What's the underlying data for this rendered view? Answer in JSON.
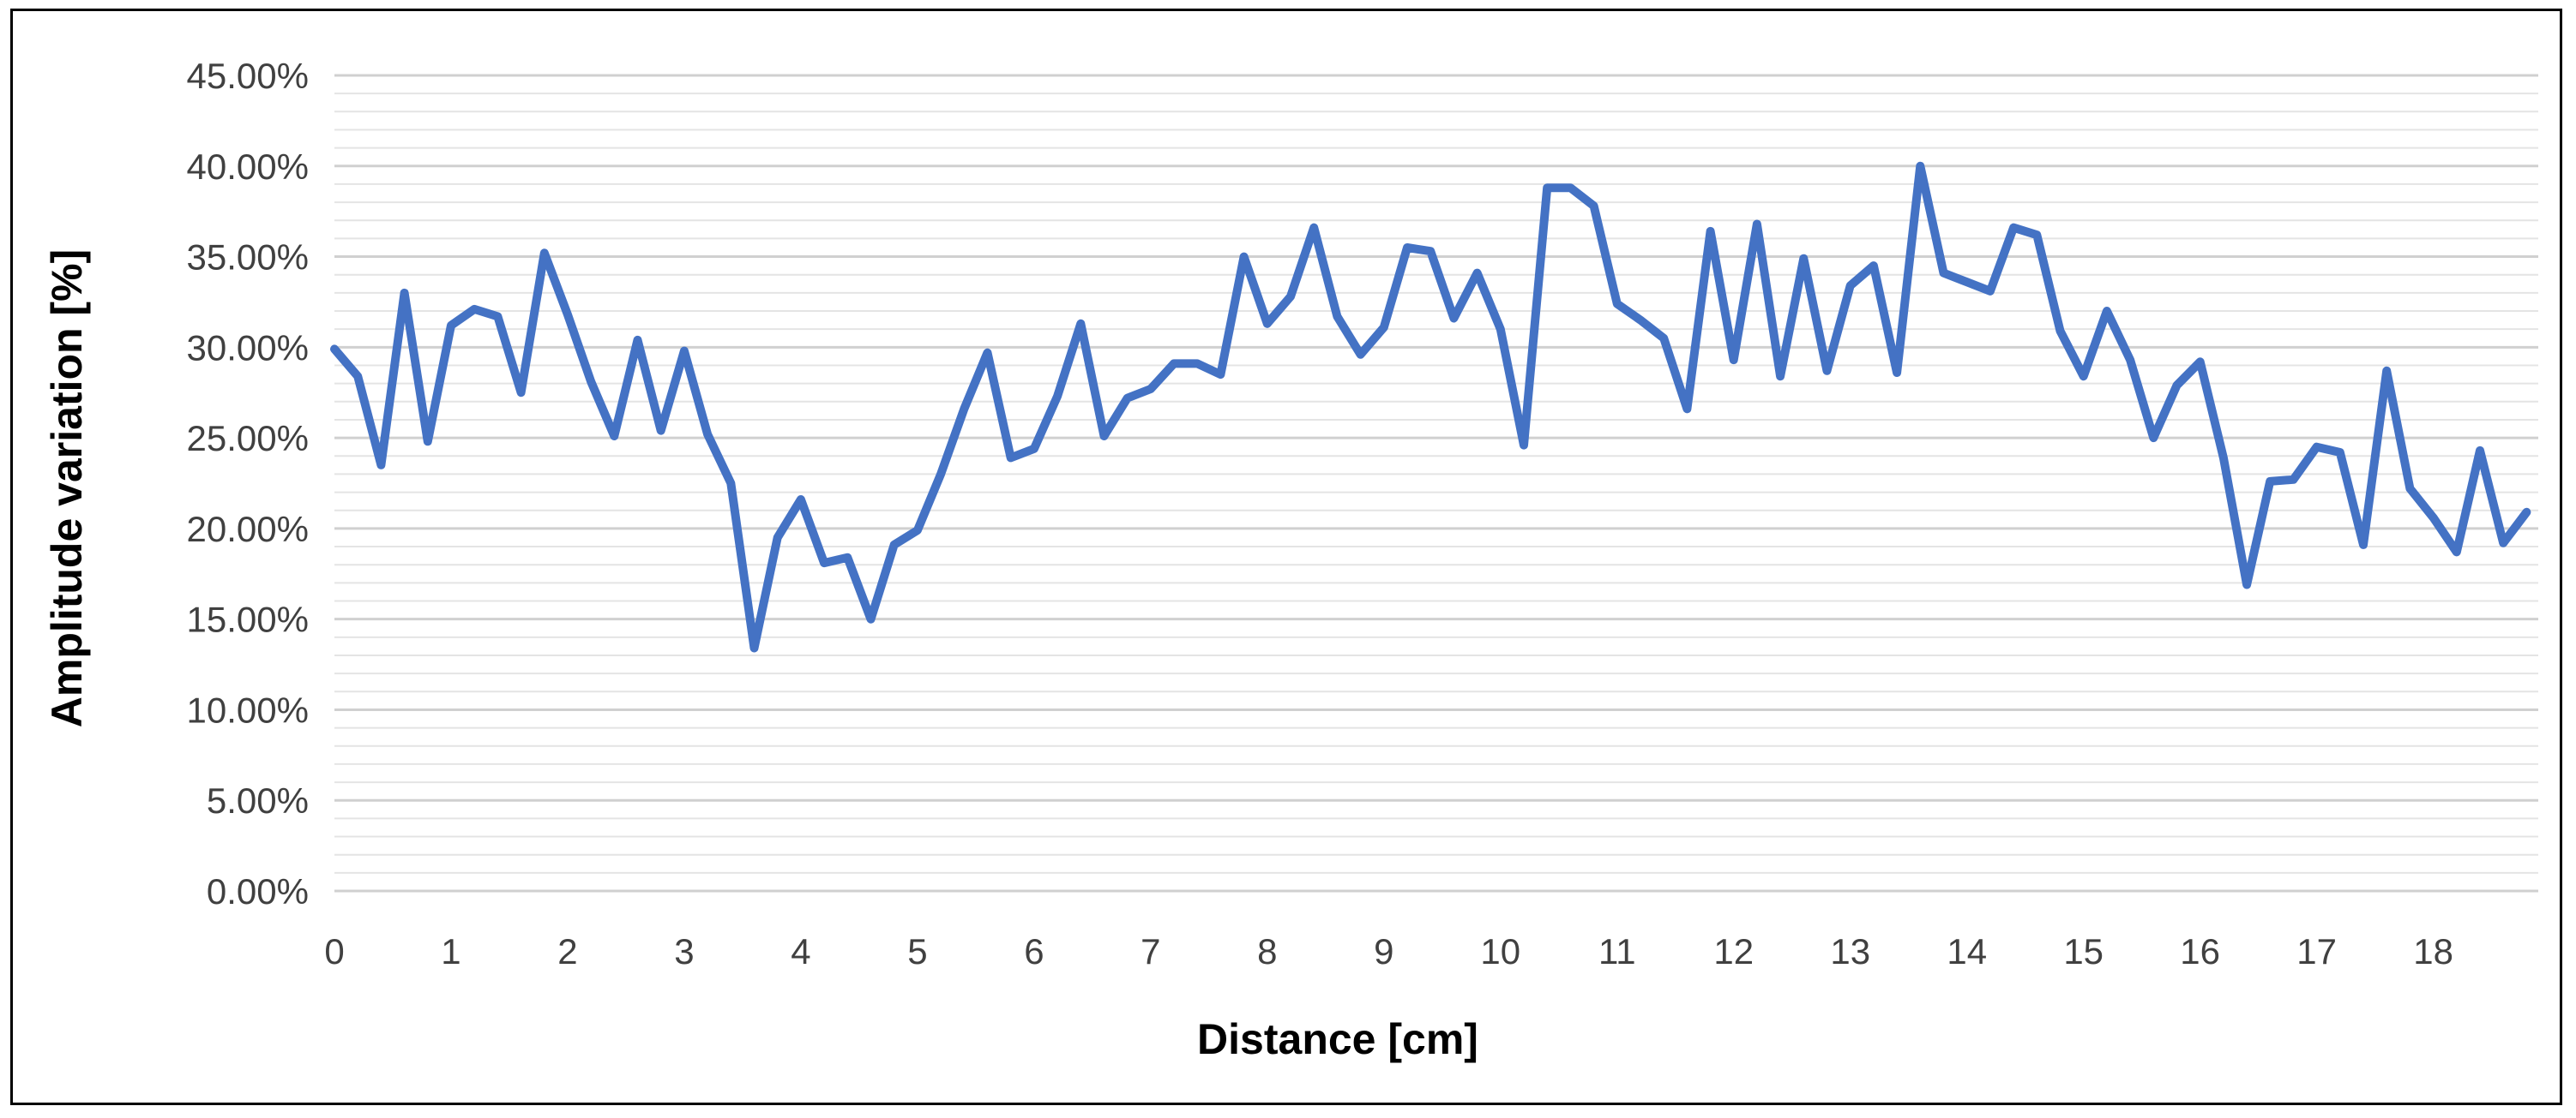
{
  "chart_data": {
    "type": "line",
    "title": "",
    "xlabel": "Distance [cm]",
    "ylabel": "Amplitude variation [%]",
    "xlim": [
      0,
      18.9
    ],
    "ylim": [
      0,
      0.45
    ],
    "x_ticks": [
      0,
      1,
      2,
      3,
      4,
      5,
      6,
      7,
      8,
      9,
      10,
      11,
      12,
      13,
      14,
      15,
      16,
      17,
      18
    ],
    "y_ticks": [
      0,
      0.05,
      0.1,
      0.15,
      0.2,
      0.25,
      0.3,
      0.35,
      0.4,
      0.45
    ],
    "y_tick_labels": [
      "0.00%",
      "5.00%",
      "10.00%",
      "15.00%",
      "20.00%",
      "25.00%",
      "30.00%",
      "35.00%",
      "40.00%",
      "45.00%"
    ],
    "grid": true,
    "minor_grid": true,
    "legend": "none",
    "line_color": "#4472C4",
    "series": [
      {
        "x": [
          0.0,
          0.2,
          0.4,
          0.6,
          0.8,
          1.0,
          1.2,
          1.4,
          1.6,
          1.8,
          2.0,
          2.2,
          2.4,
          2.6,
          2.8,
          3.0,
          3.2,
          3.4,
          3.6,
          3.8,
          4.0,
          4.2,
          4.4,
          4.6,
          4.8,
          5.0,
          5.2,
          5.4,
          5.6,
          5.8,
          6.0,
          6.2,
          6.4,
          6.6,
          6.8,
          7.0,
          7.2,
          7.4,
          7.6,
          7.8,
          8.0,
          8.2,
          8.4,
          8.6,
          8.8,
          9.0,
          9.2,
          9.4,
          9.6,
          9.8,
          10.0,
          10.2,
          10.4,
          10.6,
          10.8,
          11.0,
          11.2,
          11.4,
          11.6,
          11.8,
          12.0,
          12.2,
          12.4,
          12.6,
          12.8,
          13.0,
          13.2,
          13.4,
          13.6,
          13.8,
          14.0,
          14.2,
          14.4,
          14.6,
          14.8,
          15.0,
          15.2,
          15.4,
          15.6,
          15.8,
          16.0,
          16.2,
          16.4,
          16.6,
          16.8,
          17.0,
          17.2,
          17.4,
          17.6,
          17.8,
          18.0,
          18.2,
          18.4,
          18.6,
          18.8
        ],
        "values": [
          0.299,
          0.284,
          0.235,
          0.33,
          0.248,
          0.312,
          0.321,
          0.317,
          0.275,
          0.352,
          0.318,
          0.281,
          0.251,
          0.304,
          0.254,
          0.298,
          0.252,
          0.225,
          0.134,
          0.195,
          0.216,
          0.181,
          0.184,
          0.15,
          0.191,
          0.199,
          0.23,
          0.266,
          0.297,
          0.239,
          0.244,
          0.273,
          0.313,
          0.251,
          0.272,
          0.277,
          0.291,
          0.291,
          0.285,
          0.35,
          0.313,
          0.328,
          0.366,
          0.317,
          0.296,
          0.311,
          0.355,
          0.353,
          0.316,
          0.341,
          0.31,
          0.246,
          0.388,
          0.388,
          0.378,
          0.324,
          0.315,
          0.305,
          0.266,
          0.364,
          0.293,
          0.368,
          0.284,
          0.349,
          0.287,
          0.334,
          0.345,
          0.286,
          0.4,
          0.341,
          0.336,
          0.331,
          0.366,
          0.362,
          0.309,
          0.284,
          0.32,
          0.293,
          0.25,
          0.279,
          0.292,
          0.239,
          0.169,
          0.226,
          0.227,
          0.245,
          0.242,
          0.191,
          0.287,
          0.222,
          0.206,
          0.187,
          0.243,
          0.192,
          0.209
        ]
      }
    ]
  }
}
